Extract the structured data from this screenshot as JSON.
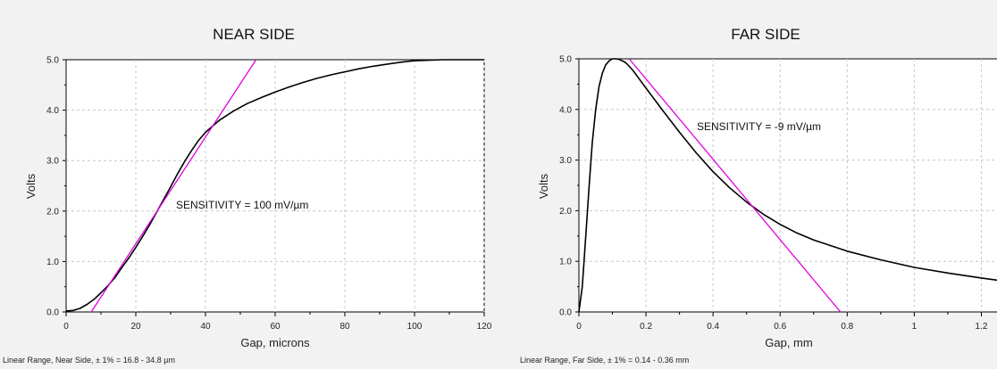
{
  "chart_data": [
    {
      "type": "line",
      "title": "NEAR SIDE",
      "xlabel": "Gap, microns",
      "ylabel": "Volts",
      "xlim": [
        0,
        120
      ],
      "ylim": [
        0,
        5
      ],
      "x_ticks": [
        0,
        20,
        40,
        60,
        80,
        100,
        120
      ],
      "x_tick_labels": [
        "0",
        "20",
        "40",
        "60",
        "80",
        "100",
        "120"
      ],
      "y_ticks": [
        0,
        1,
        2,
        3,
        4,
        5
      ],
      "y_tick_labels": [
        "0.0",
        "1.0",
        "2.0",
        "3.0",
        "4.0",
        "5.0"
      ],
      "grid": true,
      "annotation": "SENSITIVITY = 100 mV/µm",
      "footer": "Linear Range, Near Side, ± 1% = 16.8 - 34.8 µm",
      "series": [
        {
          "color": "#000000",
          "x": [
            0,
            2,
            4,
            6,
            8,
            10,
            12,
            14,
            16,
            18,
            20,
            22,
            24,
            26,
            28,
            30,
            32,
            34,
            36,
            38,
            40,
            44,
            48,
            52,
            56,
            60,
            64,
            68,
            72,
            76,
            80,
            84,
            88,
            92,
            96,
            100,
            104,
            108,
            112,
            116,
            120
          ],
          "y": [
            0.02,
            0.03,
            0.07,
            0.15,
            0.25,
            0.38,
            0.52,
            0.68,
            0.88,
            1.07,
            1.28,
            1.5,
            1.73,
            1.98,
            2.23,
            2.48,
            2.74,
            2.98,
            3.2,
            3.4,
            3.56,
            3.8,
            3.98,
            4.13,
            4.25,
            4.36,
            4.46,
            4.55,
            4.63,
            4.7,
            4.76,
            4.82,
            4.87,
            4.91,
            4.95,
            4.98,
            4.99,
            5.0,
            5.0,
            5.0,
            5.0
          ]
        },
        {
          "color": "#e000e0",
          "x": [
            7.2,
            54.5
          ],
          "y": [
            0,
            5
          ]
        }
      ]
    },
    {
      "type": "line",
      "title": "FAR SIDE",
      "xlabel": "Gap, mm",
      "ylabel": "Volts",
      "xlim": [
        0,
        1.3
      ],
      "ylim": [
        0,
        5
      ],
      "x_ticks": [
        0,
        0.2,
        0.4,
        0.6,
        0.8,
        1,
        1.2
      ],
      "x_tick_labels": [
        "0",
        "0.2",
        "0.4",
        "0.6",
        "0.8",
        "1",
        "1.2"
      ],
      "y_ticks": [
        0,
        1,
        2,
        3,
        4,
        5
      ],
      "y_tick_labels": [
        "0.0",
        "1.0",
        "2.0",
        "3.0",
        "4.0",
        "5.0"
      ],
      "grid": true,
      "annotation": "SENSITIVITY = -9 mV/µm",
      "footer": "Linear Range, Far Side, ± 1% = 0.14 - 0.36 mm",
      "series": [
        {
          "color": "#000000",
          "x": [
            0,
            0.01,
            0.02,
            0.03,
            0.04,
            0.05,
            0.06,
            0.07,
            0.08,
            0.09,
            0.1,
            0.11,
            0.12,
            0.13,
            0.14,
            0.16,
            0.18,
            0.2,
            0.25,
            0.3,
            0.35,
            0.4,
            0.45,
            0.5,
            0.55,
            0.6,
            0.65,
            0.7,
            0.8,
            0.9,
            1.0,
            1.1,
            1.2,
            1.3
          ],
          "y": [
            0.0,
            0.5,
            1.45,
            2.45,
            3.35,
            4.0,
            4.45,
            4.72,
            4.88,
            4.96,
            5.0,
            5.0,
            4.99,
            4.96,
            4.92,
            4.78,
            4.6,
            4.42,
            3.98,
            3.55,
            3.14,
            2.77,
            2.45,
            2.17,
            1.93,
            1.73,
            1.56,
            1.42,
            1.2,
            1.03,
            0.88,
            0.77,
            0.67,
            0.58
          ]
        },
        {
          "color": "#e000e0",
          "x": [
            0.15,
            0.78
          ],
          "y": [
            5,
            0
          ]
        }
      ]
    }
  ]
}
